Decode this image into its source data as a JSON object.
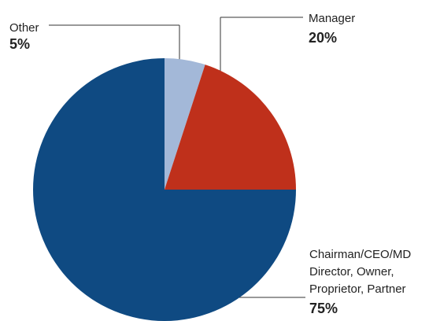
{
  "chart_data": {
    "type": "pie",
    "categories": [
      "Other",
      "Manager",
      "Chairman/CEO/MD\nDirector, Owner,\nProprietor, Partner"
    ],
    "values": [
      5,
      20,
      75
    ],
    "value_labels": [
      "5%",
      "20%",
      "75%"
    ],
    "colors": [
      "#a3b8d8",
      "#bf301b",
      "#0f4a82"
    ]
  }
}
